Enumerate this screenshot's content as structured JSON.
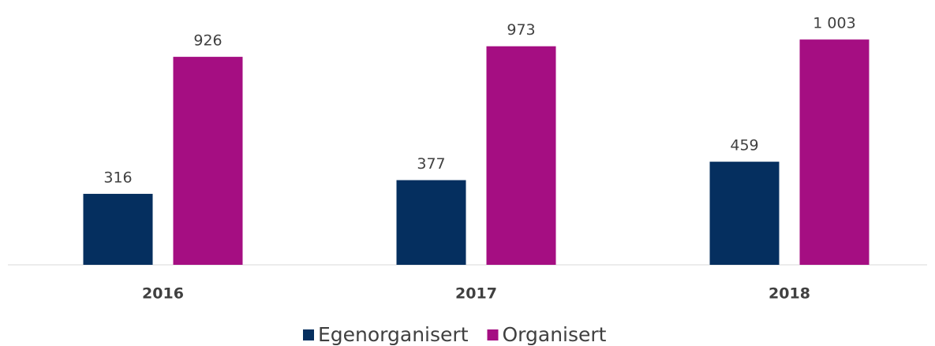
{
  "chart_data": {
    "type": "bar",
    "categories": [
      "2016",
      "2017",
      "2018"
    ],
    "series": [
      {
        "name": "Egenorganisert",
        "color": "#052f5f",
        "values": [
          316,
          377,
          459
        ]
      },
      {
        "name": "Organisert",
        "color": "#a50e82",
        "values": [
          926,
          973,
          1003
        ],
        "value_labels": [
          "926",
          "973",
          "1 003"
        ]
      }
    ],
    "ylim": [
      0,
      1100
    ]
  }
}
